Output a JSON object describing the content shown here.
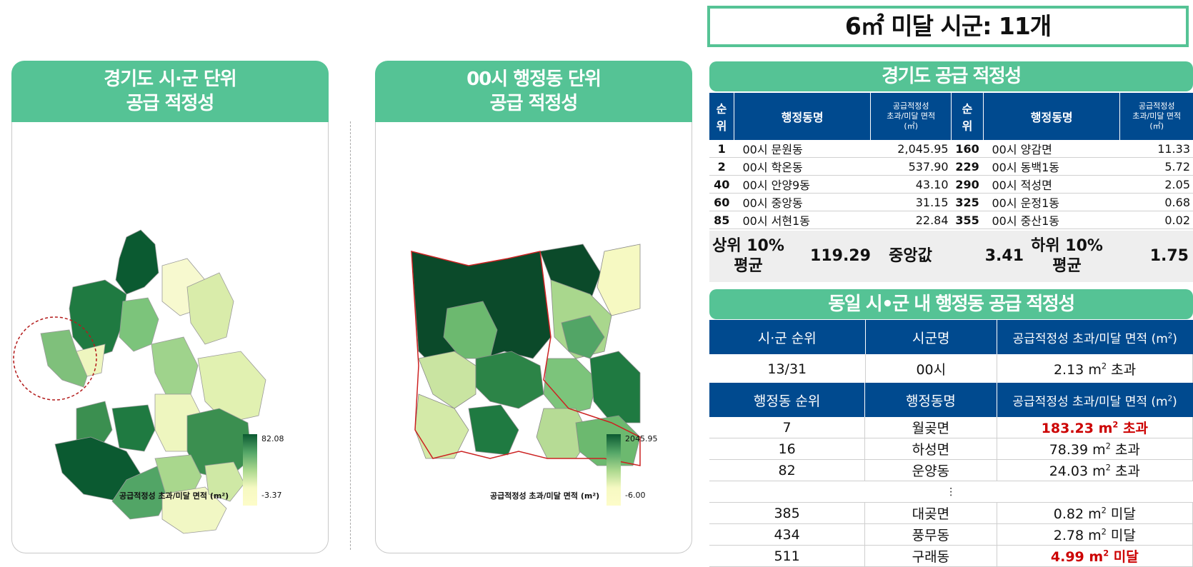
{
  "summary": {
    "text": "6㎡ 미달 시군: 11개"
  },
  "panels": {
    "left": {
      "title1": "경기도 시·군 단위",
      "title2": "공급 적정성",
      "legend_max": "82.08",
      "legend_min": "-3.37",
      "legend_caption": "공급적정성 초과/미달 면적 (m²)"
    },
    "right": {
      "title1": "00시 행정동 단위",
      "title2": "공급 적정성",
      "legend_max": "2045.95",
      "legend_min": "-6.00",
      "legend_caption": "공급적정성 초과/미달 면적 (m²)"
    }
  },
  "province": {
    "title": "경기도 공급 적정성",
    "col_rank": "순위",
    "col_rank_a": "순",
    "col_rank_b": "위",
    "col_name": "행정동명",
    "col_area_1": "공급적정성",
    "col_area_2": "초과/미달 면적",
    "col_area_3": "(㎡)",
    "rows": [
      {
        "rank_l": "1",
        "name_l": "00시 문원동",
        "val_l": "2,045.95",
        "rank_r": "160",
        "name_r": "00시 양감면",
        "val_r": "11.33"
      },
      {
        "rank_l": "2",
        "name_l": "00시 학온동",
        "val_l": "537.90",
        "rank_r": "229",
        "name_r": "00시 동백1동",
        "val_r": "5.72"
      },
      {
        "rank_l": "40",
        "name_l": "00시 안양9동",
        "val_l": "43.10",
        "rank_r": "290",
        "name_r": "00시 적성면",
        "val_r": "2.05"
      },
      {
        "rank_l": "60",
        "name_l": "00시 중앙동",
        "val_l": "31.15",
        "rank_r": "325",
        "name_r": "00시 운정1동",
        "val_r": "0.68"
      },
      {
        "rank_l": "85",
        "name_l": "00시 서현1동",
        "val_l": "22.84",
        "rank_r": "355",
        "name_r": "00시 중산1동",
        "val_r": "0.02"
      }
    ],
    "stats": {
      "top_label1": "상위 10%",
      "top_label2": "평균",
      "top_value": "119.29",
      "median_label": "중앙값",
      "median_value": "3.41",
      "bottom_label1": "하위 10%",
      "bottom_label2": "평균",
      "bottom_value": "1.75"
    }
  },
  "same_city": {
    "title": "동일 시•군 내 행정동 공급 적정성",
    "h_rank": "시·군 순위",
    "h_city": "시군명",
    "h_area": "공급적정성 초과/미달 면적 (m",
    "rank": "13/31",
    "city": "00시",
    "area": "2.13 m",
    "area_suffix": " 초과",
    "h2_rank": "행정동 순위",
    "h2_name": "행정동명",
    "h2_area": "공급적정성 초과/미달 면적 (m",
    "ellipsis": "⋮",
    "rows": [
      {
        "rank": "7",
        "name": "월곶면",
        "val": "183.23 m",
        "suf": " 초과"
      },
      {
        "rank": "16",
        "name": "하성면",
        "val": "78.39 m",
        "suf": " 초과"
      },
      {
        "rank": "82",
        "name": "운양동",
        "val": "24.03 m",
        "suf": " 초과"
      },
      {
        "rank": "385",
        "name": "대곶면",
        "val": "0.82 m",
        "suf": " 미달"
      },
      {
        "rank": "434",
        "name": "풍무동",
        "val": "2.78 m",
        "suf": " 미달"
      },
      {
        "rank": "511",
        "name": "구래동",
        "val": "4.99 m",
        "suf": " 미달"
      }
    ]
  },
  "colors": {
    "green_header": "#55c395",
    "blue_header": "#004a8f",
    "highlight": "#cc0000"
  }
}
